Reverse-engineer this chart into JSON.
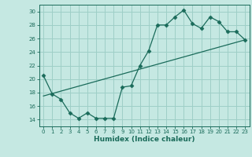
{
  "title": "",
  "xlabel": "Humidex (Indice chaleur)",
  "xlim": [
    -0.5,
    23.5
  ],
  "ylim": [
    13.0,
    31.0
  ],
  "xticks": [
    0,
    1,
    2,
    3,
    4,
    5,
    6,
    7,
    8,
    9,
    10,
    11,
    12,
    13,
    14,
    15,
    16,
    17,
    18,
    19,
    20,
    21,
    22,
    23
  ],
  "yticks": [
    14,
    16,
    18,
    20,
    22,
    24,
    26,
    28,
    30
  ],
  "bg_color": "#c5e8e2",
  "grid_color": "#9ecfc7",
  "line_color": "#1a6b5a",
  "curve_x": [
    0,
    1,
    2,
    3,
    4,
    5,
    6,
    7,
    8,
    9,
    10,
    11,
    12,
    13,
    14,
    15,
    16,
    17,
    18,
    19,
    20,
    21,
    22,
    23
  ],
  "curve_y": [
    20.5,
    17.8,
    17.0,
    15.0,
    14.2,
    15.0,
    14.2,
    14.2,
    14.2,
    18.8,
    19.0,
    22.0,
    24.2,
    28.0,
    28.0,
    29.2,
    30.2,
    28.2,
    27.5,
    29.2,
    28.5,
    27.0,
    27.0,
    25.8
  ],
  "trend_x": [
    0,
    23
  ],
  "trend_y": [
    17.5,
    25.8
  ],
  "marker_size": 2.5,
  "line_width": 0.9,
  "tick_fontsize": 5.0,
  "xlabel_fontsize": 6.5
}
